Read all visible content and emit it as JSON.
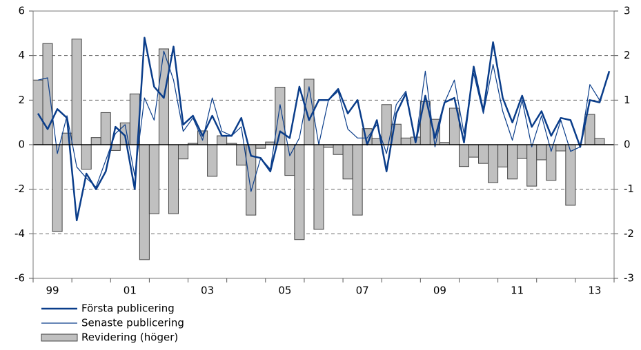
{
  "chart_data": {
    "type": "combo",
    "categories": [
      null,
      "99",
      null,
      null,
      null,
      null,
      null,
      null,
      null,
      "01",
      null,
      null,
      null,
      null,
      null,
      null,
      null,
      "03",
      null,
      null,
      null,
      null,
      null,
      null,
      null,
      "05",
      null,
      null,
      null,
      null,
      null,
      null,
      null,
      "07",
      null,
      null,
      null,
      null,
      null,
      null,
      null,
      "09",
      null,
      null,
      null,
      null,
      null,
      null,
      null,
      "11",
      null,
      null,
      null,
      null,
      null,
      null,
      null,
      "13",
      null,
      null
    ],
    "series": [
      {
        "name": "Revidering (höger)",
        "type": "bar",
        "axis": "y2",
        "color": "#c0c0c0",
        "values": [
          1.45,
          2.27,
          -1.95,
          0.26,
          2.37,
          -0.55,
          0.16,
          0.72,
          -0.13,
          0.49,
          1.14,
          -2.58,
          -1.55,
          2.15,
          -1.55,
          -0.32,
          0.03,
          0.31,
          -0.71,
          0.2,
          0.03,
          -0.46,
          -1.58,
          -0.08,
          0.06,
          1.29,
          -0.69,
          -2.13,
          1.47,
          -1.9,
          -0.06,
          -0.22,
          -0.77,
          -1.58,
          0.36,
          0.14,
          0.9,
          0.46,
          0.15,
          0.17,
          0.97,
          0.57,
          0.05,
          0.82,
          -0.49,
          -0.28,
          -0.42,
          -0.85,
          -0.5,
          -0.77,
          -0.31,
          -0.93,
          -0.34,
          -0.8,
          -0.14,
          -1.36,
          0,
          0.68,
          0.14,
          null
        ]
      },
      {
        "name": "Första publicering",
        "type": "line",
        "color": "#0a3d8a",
        "width": 2.5,
        "values": [
          1.4,
          0.7,
          1.6,
          1.2,
          -3.4,
          -1.3,
          -2.0,
          -1.2,
          0.8,
          0.4,
          -2.0,
          4.8,
          2.6,
          2.1,
          4.4,
          0.9,
          1.3,
          0.4,
          1.3,
          0.4,
          0.4,
          1.2,
          -0.5,
          -0.6,
          -1.2,
          0.6,
          0.3,
          2.6,
          1.1,
          2.0,
          2.0,
          2.5,
          1.4,
          2.0,
          0.0,
          1.1,
          -1.2,
          1.4,
          2.3,
          0.1,
          2.2,
          0.3,
          1.9,
          2.1,
          0.1,
          3.5,
          1.5,
          4.6,
          2.1,
          1.0,
          2.2,
          0.8,
          1.5,
          0.4,
          1.2,
          1.1,
          -0.1,
          2.0,
          1.9,
          3.3
        ]
      },
      {
        "name": "Senaste publicering",
        "type": "line",
        "color": "#0a3d8a",
        "width": 1.2,
        "values": [
          2.9,
          3.0,
          -0.4,
          1.3,
          -1.0,
          -1.5,
          -1.9,
          -0.7,
          0.5,
          0.9,
          -1.4,
          2.1,
          1.1,
          4.2,
          2.9,
          0.6,
          1.2,
          0.2,
          2.1,
          0.6,
          0.4,
          0.8,
          -2.1,
          -0.6,
          -1.1,
          1.8,
          -0.5,
          0.3,
          2.6,
          0.0,
          2.0,
          2.4,
          0.7,
          0.3,
          0.3,
          0.9,
          -0.4,
          1.8,
          2.4,
          0.1,
          3.3,
          -0.1,
          1.9,
          2.9,
          0.5,
          3.2,
          1.4,
          3.6,
          1.5,
          0.2,
          2.0,
          -0.1,
          1.3,
          -0.3,
          1.1,
          -0.3,
          -0.1,
          2.7,
          2.0,
          3.2
        ]
      }
    ],
    "ylim": [
      -6,
      6
    ],
    "yticks": [
      -6,
      -4,
      -2,
      0,
      2,
      4,
      6
    ],
    "y2lim": [
      -3,
      3
    ],
    "y2ticks": [
      -3,
      -2,
      -1,
      0,
      1,
      2,
      3
    ],
    "grid": true,
    "legend": "bottom-left"
  }
}
